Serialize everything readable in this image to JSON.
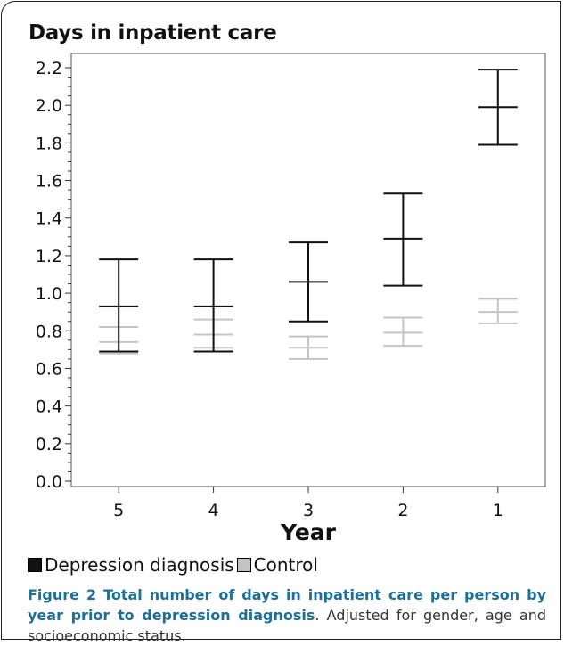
{
  "chart_data": {
    "type": "errorbar",
    "title": "Days in inpatient care",
    "xlabel": "Year",
    "ylabel": "",
    "categories": [
      "5",
      "4",
      "3",
      "2",
      "1"
    ],
    "ylim": [
      0.0,
      2.2
    ],
    "yticks": [
      "0.0",
      "0.2",
      "0.4",
      "0.6",
      "0.8",
      "1.0",
      "1.2",
      "1.4",
      "1.6",
      "1.8",
      "2.0",
      "2.2"
    ],
    "grid": false,
    "legend_placement": "bottom",
    "series": [
      {
        "name": "Depression diagnosis",
        "color": "#111111",
        "mean": [
          0.93,
          0.93,
          1.06,
          1.29,
          1.99
        ],
        "lower": [
          0.69,
          0.69,
          0.85,
          1.04,
          1.79
        ],
        "upper": [
          1.18,
          1.18,
          1.27,
          1.53,
          2.19
        ]
      },
      {
        "name": "Control",
        "color": "#c4c4c4",
        "mean": [
          0.74,
          0.78,
          0.71,
          0.79,
          0.9
        ],
        "lower": [
          0.68,
          0.71,
          0.65,
          0.72,
          0.84
        ],
        "upper": [
          0.82,
          0.86,
          0.77,
          0.87,
          0.97
        ]
      }
    ]
  },
  "caption": {
    "label": "Figure 2 Total number of days in inpatient care per person by year prior to depression diagnosis",
    "text": ". Adjusted for gender, age and socioeconomic status."
  }
}
